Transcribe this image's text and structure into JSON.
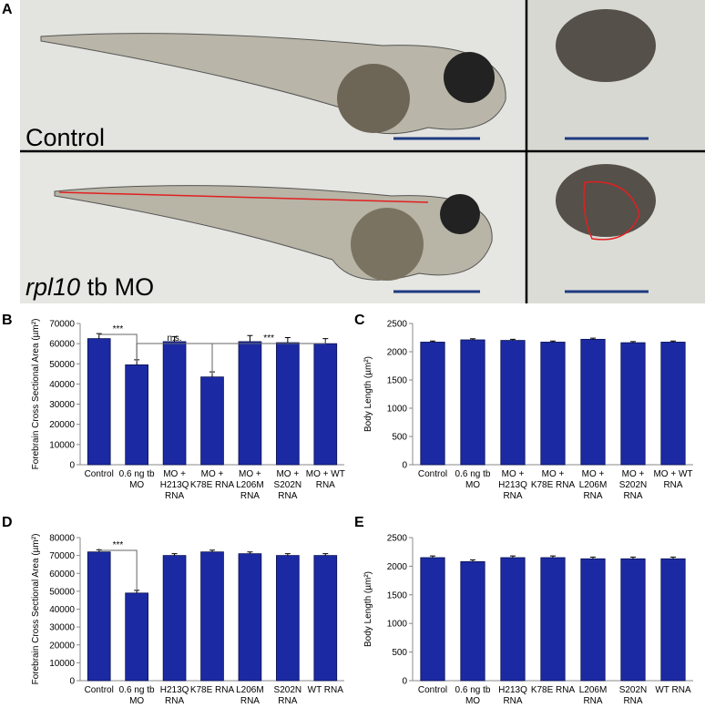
{
  "panel_a": {
    "letter": "A",
    "top_label": "Control",
    "bottom_label_italic": "rpl10",
    "bottom_label_rest": "tb MO"
  },
  "chart_data": [
    {
      "type": "bar",
      "letter": "B",
      "y_label": "Forebrain Cross Sectional Area (µm²)",
      "categories": [
        "Control",
        "0.6 ng tb MO",
        "MO + H213Q RNA",
        "MO + K78E RNA",
        "MO + L206M RNA",
        "MO + S202N RNA",
        "MO + WT RNA"
      ],
      "values": [
        62500,
        49500,
        61000,
        43500,
        61000,
        60500,
        60000
      ],
      "errors": [
        2500,
        2500,
        2500,
        2500,
        3000,
        2500,
        2500
      ],
      "color": "#1b2aa3",
      "ylim": [
        0,
        70000
      ],
      "yticks": [
        0,
        10000,
        20000,
        30000,
        40000,
        50000,
        60000,
        70000
      ],
      "annotations": [
        "***",
        "n.s.",
        "***"
      ]
    },
    {
      "type": "bar",
      "letter": "C",
      "y_label": "Body Length (µm²)",
      "categories": [
        "Control",
        "0.6 ng tb MO",
        "MO + H213Q RNA",
        "MO + K78E RNA",
        "MO + L206M RNA",
        "MO + S202N RNA",
        "MO + WT RNA"
      ],
      "values": [
        2170,
        2210,
        2200,
        2170,
        2220,
        2160,
        2170
      ],
      "errors": [
        20,
        20,
        20,
        20,
        20,
        20,
        20
      ],
      "color": "#1b2aa3",
      "ylim": [
        0,
        2500
      ],
      "yticks": [
        0,
        500,
        1000,
        1500,
        2000,
        2500
      ],
      "annotations": []
    },
    {
      "type": "bar",
      "letter": "D",
      "y_label": "Forebrain Cross Sectional Area (µm²)",
      "categories": [
        "Control",
        "0.6 ng tb MO",
        "H213Q RNA",
        "K78E RNA",
        "L206M RNA",
        "S202N RNA",
        "WT RNA"
      ],
      "values": [
        72000,
        49000,
        70000,
        72000,
        71000,
        70000,
        70000
      ],
      "errors": [
        1200,
        1500,
        1000,
        1000,
        1000,
        1000,
        1000
      ],
      "color": "#1b2aa3",
      "ylim": [
        0,
        80000
      ],
      "yticks": [
        0,
        10000,
        20000,
        30000,
        40000,
        50000,
        60000,
        70000,
        80000
      ],
      "annotations": [
        "***"
      ]
    },
    {
      "type": "bar",
      "letter": "E",
      "y_label": "Body Length (µm²)",
      "categories": [
        "Control",
        "0.6 ng tb MO",
        "H213Q RNA",
        "K78E RNA",
        "L206M RNA",
        "S202N RNA",
        "WT RNA"
      ],
      "values": [
        2150,
        2080,
        2150,
        2150,
        2130,
        2130,
        2130
      ],
      "errors": [
        30,
        30,
        30,
        30,
        30,
        30,
        30
      ],
      "color": "#1b2aa3",
      "ylim": [
        0,
        2500
      ],
      "yticks": [
        0,
        500,
        1000,
        1500,
        2000,
        2500
      ],
      "annotations": []
    }
  ]
}
